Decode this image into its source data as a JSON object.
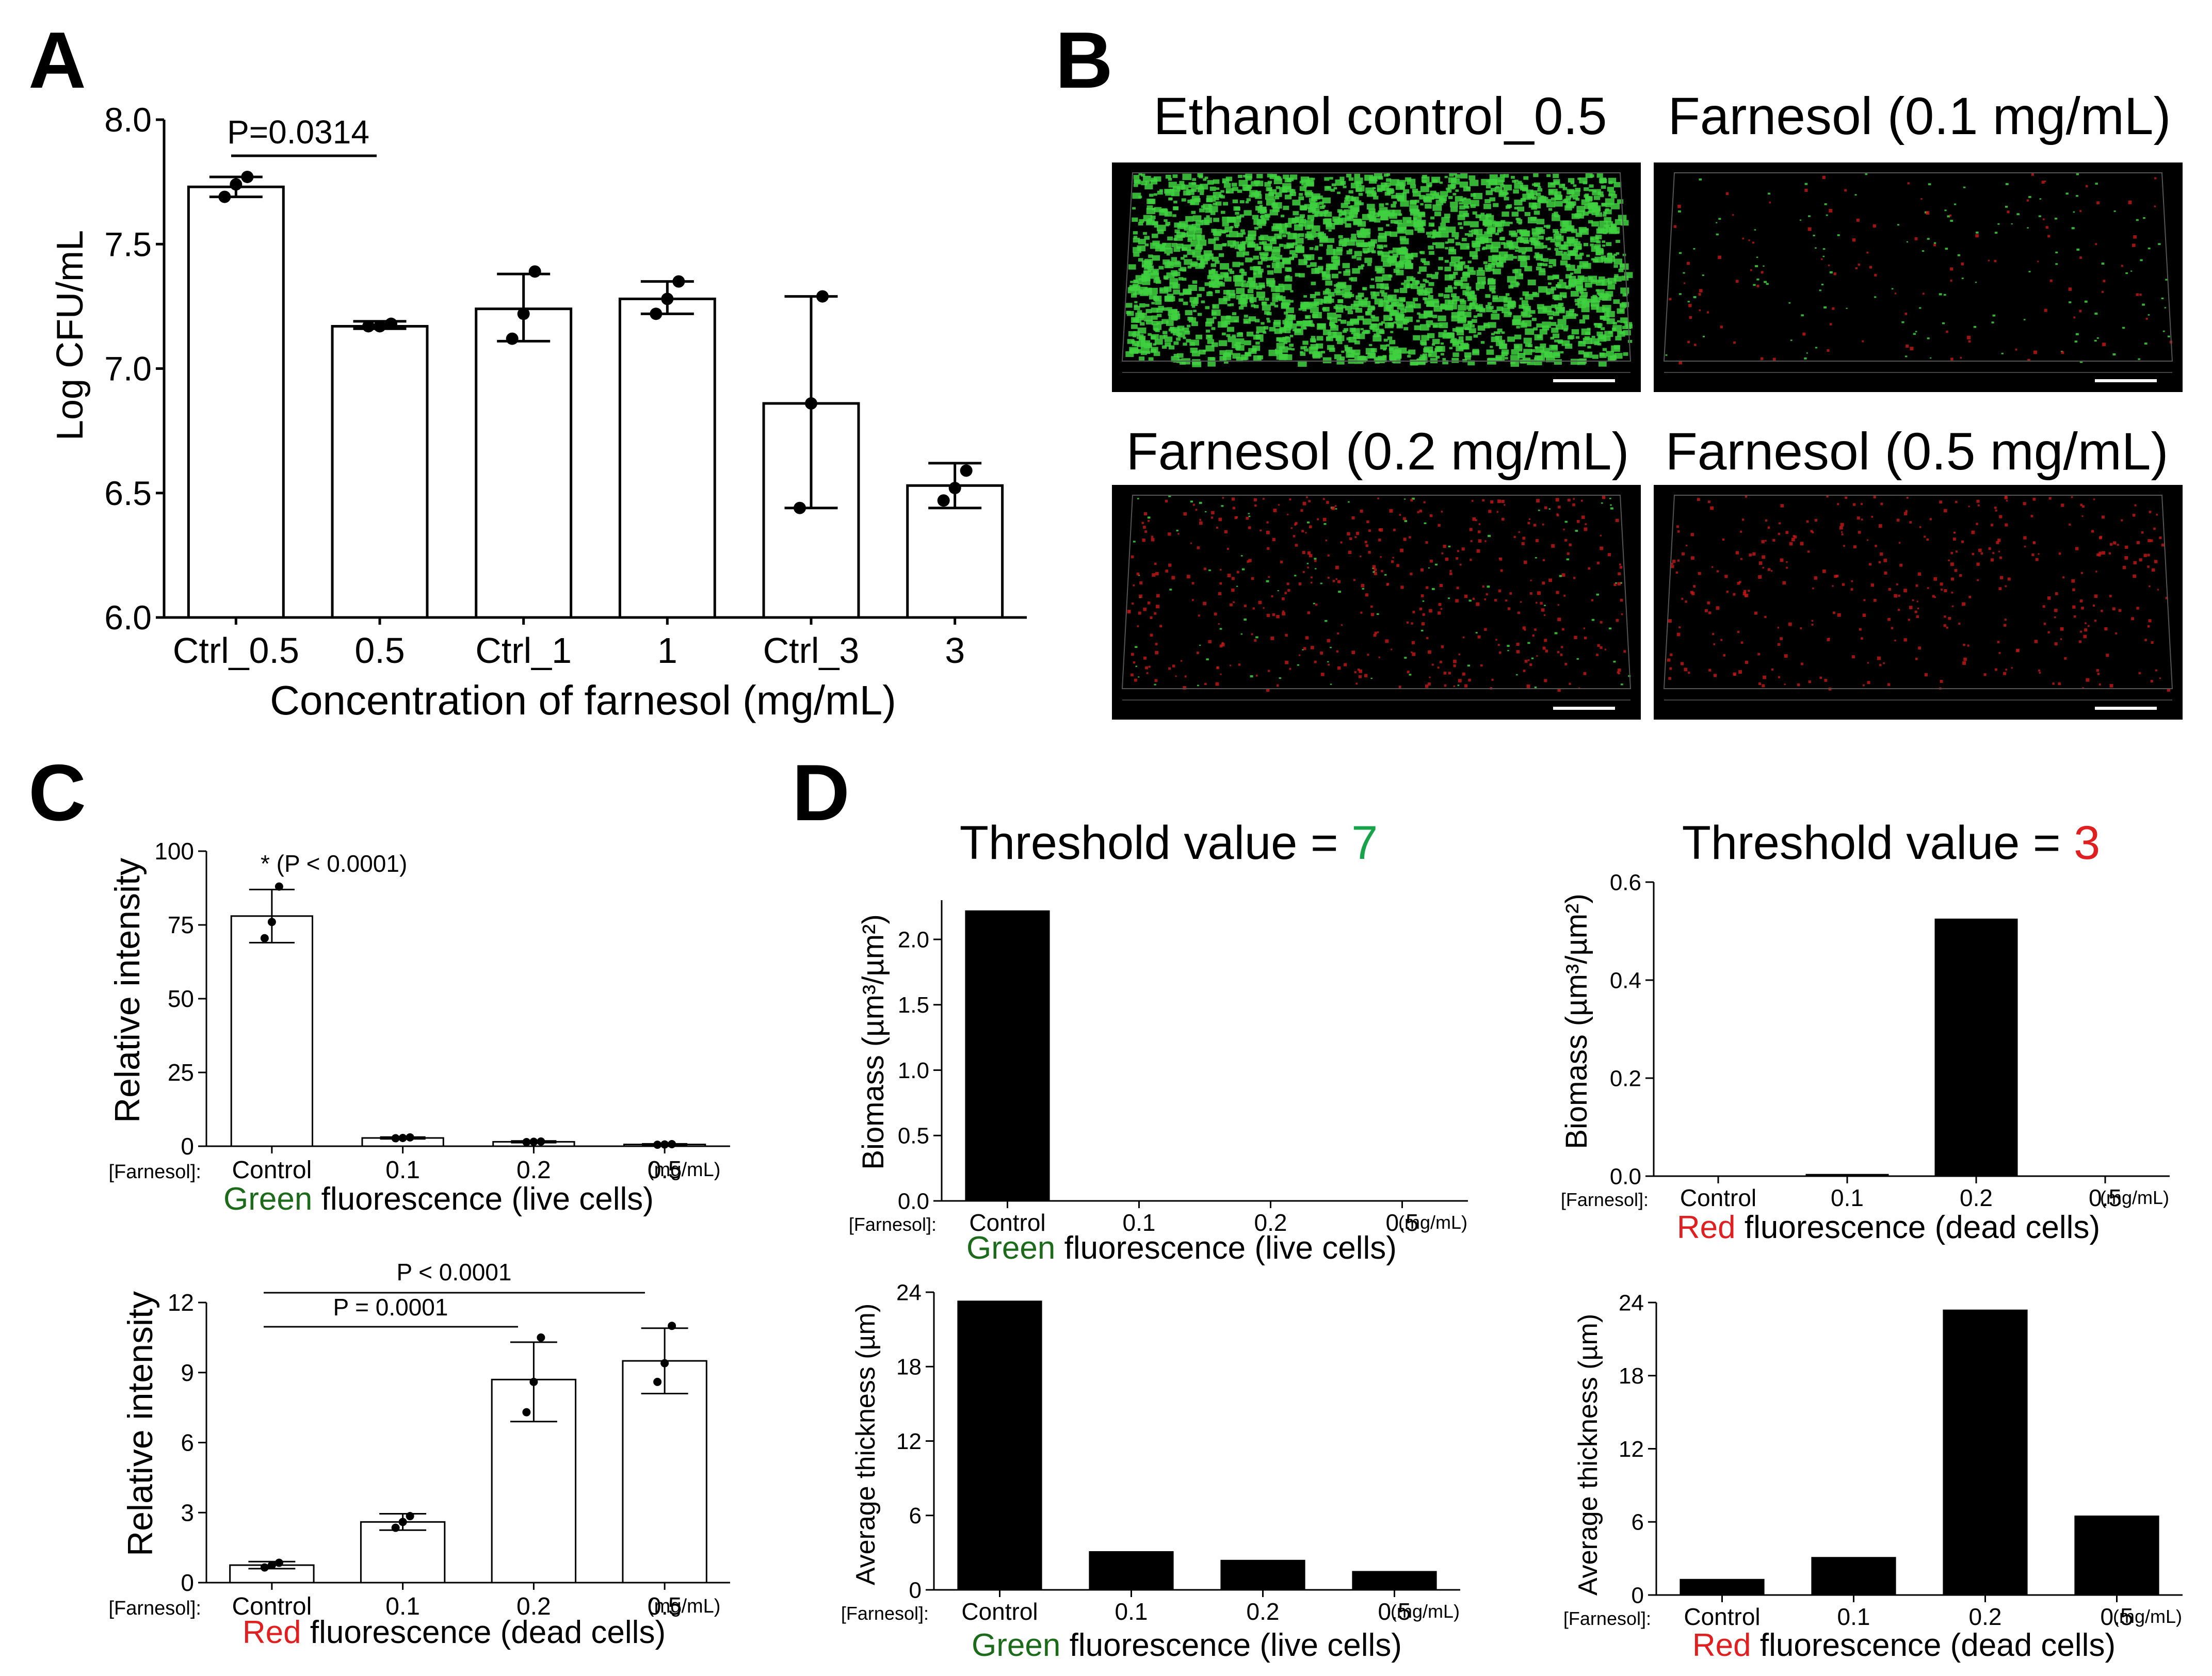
{
  "colors": {
    "green_text": "#1b6b1b",
    "green_bright": "#16a34a",
    "red_text": "#e02020",
    "bar_white": "#ffffff",
    "bar_black": "#000000",
    "micro_green": "#3fd13f",
    "micro_red": "#c81818"
  },
  "panel_labels": [
    "A",
    "B",
    "C",
    "D"
  ],
  "panelB": {
    "titles": [
      "Ethanol  control_0.5",
      "Farnesol  (0.1 mg/mL)",
      "Farnesol  (0.2 mg/mL)",
      "Farnesol  (0.5 mg/mL)"
    ],
    "images": [
      {
        "green_density": 0.95,
        "red_density": 0.0
      },
      {
        "green_density": 0.05,
        "red_density": 0.06
      },
      {
        "green_density": 0.04,
        "red_density": 0.25
      },
      {
        "green_density": 0.0,
        "red_density": 0.22
      }
    ]
  },
  "word_green": "Green",
  "word_red": "Red",
  "live_suffix": " fluorescence (live cells)",
  "dead_suffix": " fluorescence (dead cells)",
  "farnesol_prefix": "[Farnesol]:",
  "unit_suffix": "(mg/mL)",
  "chart_data": [
    {
      "id": "A",
      "type": "bar",
      "categories": [
        "Ctrl_0.5",
        "0.5",
        "Ctrl_1",
        "1",
        "Ctrl_3",
        "3"
      ],
      "values": [
        7.73,
        7.17,
        7.24,
        7.28,
        6.86,
        6.53
      ],
      "error_bars": [
        [
          7.69,
          7.77
        ],
        [
          7.16,
          7.19
        ],
        [
          7.11,
          7.38
        ],
        [
          7.22,
          7.35
        ],
        [
          6.44,
          7.29
        ],
        [
          6.44,
          6.62
        ]
      ],
      "points": [
        [
          7.69,
          7.74,
          7.77
        ],
        [
          7.17,
          7.17,
          7.18
        ],
        [
          7.12,
          7.22,
          7.39
        ],
        [
          7.22,
          7.28,
          7.35
        ],
        [
          6.44,
          6.86,
          7.29
        ],
        [
          6.47,
          6.52,
          6.59
        ]
      ],
      "ylabel": "Log CFU/mL",
      "xlabel": "Concentration of farnesol (mg/mL)",
      "ylim": [
        6.0,
        8.0
      ],
      "yticks": [
        "6.0",
        "6.5",
        "7.0",
        "7.5",
        "8.0"
      ],
      "annotations": [
        "P=0.0314"
      ]
    },
    {
      "id": "C-top",
      "type": "bar",
      "categories": [
        "Control",
        "0.1",
        "0.2",
        "0.5"
      ],
      "values": [
        78.0,
        2.8,
        1.5,
        0.6
      ],
      "error_bars": [
        [
          69.0,
          87.0
        ],
        [
          2.5,
          3.1
        ],
        [
          1.2,
          1.8
        ],
        [
          0.4,
          0.8
        ]
      ],
      "points": [
        [
          70.5,
          76.0,
          88.0
        ],
        [
          2.7,
          2.8,
          3.0
        ],
        [
          1.4,
          1.5,
          1.6
        ],
        [
          0.5,
          0.6,
          0.7
        ]
      ],
      "ylabel": "Relative intensity",
      "ylim": [
        0,
        100
      ],
      "yticks": [
        "0",
        "25",
        "50",
        "75",
        "100"
      ],
      "annotations": [
        "* (P < 0.0001)"
      ]
    },
    {
      "id": "C-bottom",
      "type": "bar",
      "categories": [
        "Control",
        "0.1",
        "0.2",
        "0.5"
      ],
      "values": [
        0.75,
        2.6,
        8.7,
        9.5
      ],
      "error_bars": [
        [
          0.6,
          0.9
        ],
        [
          2.25,
          2.95
        ],
        [
          6.9,
          10.3
        ],
        [
          8.1,
          10.9
        ]
      ],
      "points": [
        [
          0.65,
          0.75,
          0.85
        ],
        [
          2.35,
          2.6,
          2.85
        ],
        [
          7.3,
          8.6,
          10.5
        ],
        [
          8.6,
          9.4,
          11.0
        ]
      ],
      "ylabel": "Relative intensity",
      "ylim": [
        0,
        12
      ],
      "yticks": [
        "0",
        "3",
        "6",
        "9",
        "12"
      ],
      "annotations": [
        "P < 0.0001",
        "P = 0.0001"
      ]
    },
    {
      "id": "D-green-biomass",
      "type": "bar",
      "title_prefix": "Threshold value = ",
      "title_value": "7",
      "categories": [
        "Control",
        "0.1",
        "0.2",
        "0.5"
      ],
      "values": [
        2.22,
        0,
        0,
        0
      ],
      "ylabel": "Biomass (µm³/µm²)",
      "ylim": [
        0,
        2.3
      ],
      "yticks": [
        "0.0",
        "0.5",
        "1.0",
        "1.5",
        "2.0"
      ]
    },
    {
      "id": "D-red-biomass",
      "type": "bar",
      "title_prefix": "Threshold value = ",
      "title_value": "3",
      "categories": [
        "Control",
        "0.1",
        "0.2",
        "0.5"
      ],
      "values": [
        0,
        0.004,
        0.525,
        0
      ],
      "ylabel": "Biomass (µm³/µm²)",
      "ylim": [
        0,
        0.6
      ],
      "yticks": [
        "0.0",
        "0.2",
        "0.4",
        "0.6"
      ]
    },
    {
      "id": "D-green-thickness",
      "type": "bar",
      "categories": [
        "Control",
        "0.1",
        "0.2",
        "0.5"
      ],
      "values": [
        23.3,
        3.1,
        2.4,
        1.5
      ],
      "ylabel": "Average thickness (µm)",
      "ylim": [
        0,
        24
      ],
      "yticks": [
        "0",
        "6",
        "12",
        "18",
        "24"
      ]
    },
    {
      "id": "D-red-thickness",
      "type": "bar",
      "categories": [
        "Control",
        "0.1",
        "0.2",
        "0.5"
      ],
      "values": [
        1.3,
        3.1,
        23.4,
        6.5
      ],
      "ylabel": "Average thickness (µm)",
      "ylim": [
        0,
        24
      ],
      "yticks": [
        "0",
        "6",
        "12",
        "18",
        "24"
      ]
    }
  ]
}
